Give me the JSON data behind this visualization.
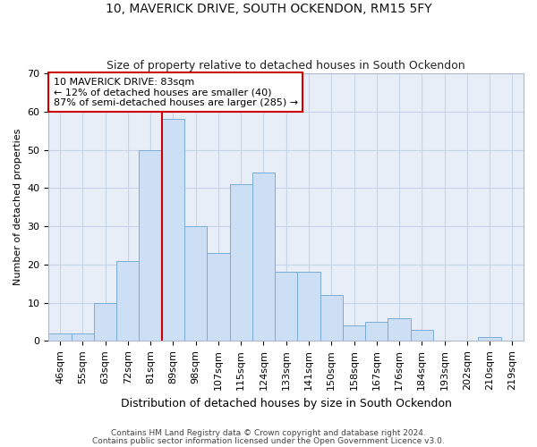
{
  "title": "10, MAVERICK DRIVE, SOUTH OCKENDON, RM15 5FY",
  "subtitle": "Size of property relative to detached houses in South Ockendon",
  "xlabel": "Distribution of detached houses by size in South Ockendon",
  "ylabel": "Number of detached properties",
  "bar_labels": [
    "46sqm",
    "55sqm",
    "63sqm",
    "72sqm",
    "81sqm",
    "89sqm",
    "98sqm",
    "107sqm",
    "115sqm",
    "124sqm",
    "133sqm",
    "141sqm",
    "150sqm",
    "158sqm",
    "167sqm",
    "176sqm",
    "184sqm",
    "193sqm",
    "202sqm",
    "210sqm",
    "219sqm"
  ],
  "bar_heights": [
    2,
    2,
    10,
    21,
    50,
    58,
    30,
    23,
    41,
    44,
    18,
    18,
    12,
    4,
    5,
    6,
    3,
    0,
    0,
    1,
    0
  ],
  "bar_color": "#ccdff5",
  "bar_edge_color": "#7aadd4",
  "grid_color": "#c8d4e8",
  "bg_color": "#e8eef8",
  "vline_color": "#cc0000",
  "vline_x_index": 5,
  "annotation_line1": "10 MAVERICK DRIVE: 83sqm",
  "annotation_line2": "← 12% of detached houses are smaller (40)",
  "annotation_line3": "87% of semi-detached houses are larger (285) →",
  "annotation_box_facecolor": "#ffffff",
  "annotation_box_edgecolor": "#cc0000",
  "footer1": "Contains HM Land Registry data © Crown copyright and database right 2024.",
  "footer2": "Contains public sector information licensed under the Open Government Licence v3.0.",
  "ylim": [
    0,
    70
  ],
  "yticks": [
    0,
    10,
    20,
    30,
    40,
    50,
    60,
    70
  ],
  "title_fontsize": 10,
  "subtitle_fontsize": 9,
  "ylabel_fontsize": 8,
  "xlabel_fontsize": 9,
  "tick_fontsize": 8,
  "annot_fontsize": 8,
  "footer_fontsize": 6.5
}
